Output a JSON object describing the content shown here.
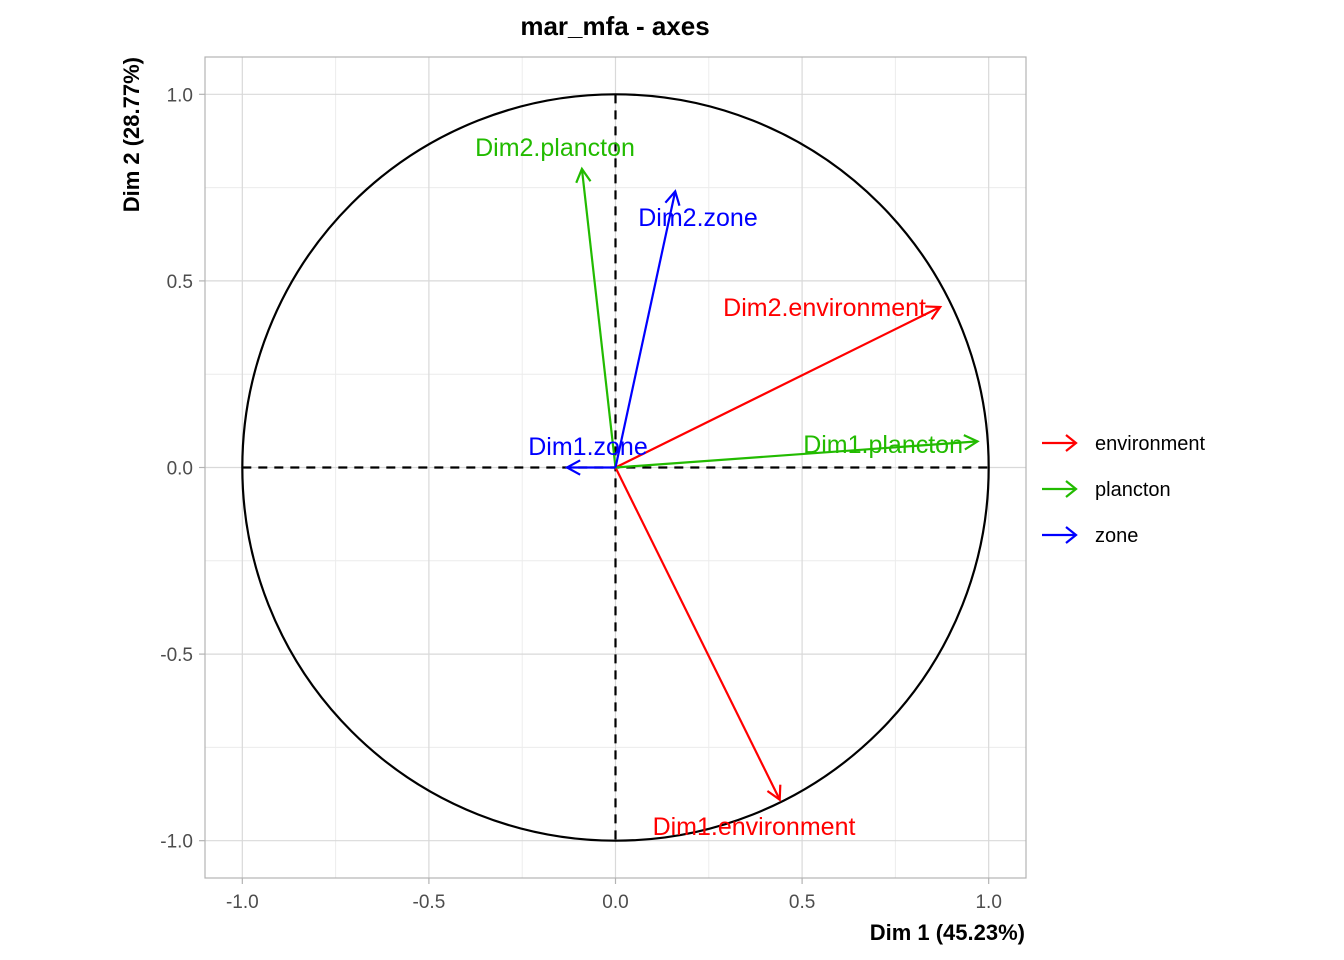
{
  "colors": {
    "environment": "#ff0000",
    "plancton": "#22bb00",
    "zone": "#0000ff",
    "circle": "#000000",
    "grid_major": "#d9d9d9",
    "grid_minor": "#ececec",
    "panel_border": "#b3b3b3"
  },
  "chart_data": {
    "type": "scatter",
    "subtype": "correlation-circle-arrows",
    "title": "mar_mfa - axes",
    "xlabel": "Dim 1 (45.23%)",
    "ylabel": "Dim 2 (28.77%)",
    "xlim": [
      -1.1,
      1.1
    ],
    "ylim": [
      -1.1,
      1.1
    ],
    "xticks": [
      -1.0,
      -0.5,
      0.0,
      0.5,
      1.0
    ],
    "yticks": [
      -1.0,
      -0.5,
      0.0,
      0.5,
      1.0
    ],
    "xtick_labels": [
      "-1.0",
      "-0.5",
      "0.0",
      "0.5",
      "1.0"
    ],
    "ytick_labels": [
      "-1.0",
      "-0.5",
      "0.0",
      "0.5",
      "1.0"
    ],
    "grid": true,
    "unit_circle": true,
    "reference_lines": "dashed at x=0 and y=0",
    "legend_position": "right",
    "legend": [
      "environment",
      "plancton",
      "zone"
    ],
    "arrows": [
      {
        "label": "Dim1.environment",
        "group": "environment",
        "x": 0.44,
        "y": -0.89
      },
      {
        "label": "Dim2.environment",
        "group": "environment",
        "x": 0.87,
        "y": 0.43
      },
      {
        "label": "Dim1.plancton",
        "group": "plancton",
        "x": 0.97,
        "y": 0.07
      },
      {
        "label": "Dim2.plancton",
        "group": "plancton",
        "x": -0.09,
        "y": 0.8
      },
      {
        "label": "Dim1.zone",
        "group": "zone",
        "x": -0.13,
        "y": 0.0
      },
      {
        "label": "Dim2.zone",
        "group": "zone",
        "x": 0.16,
        "y": 0.74
      }
    ]
  }
}
